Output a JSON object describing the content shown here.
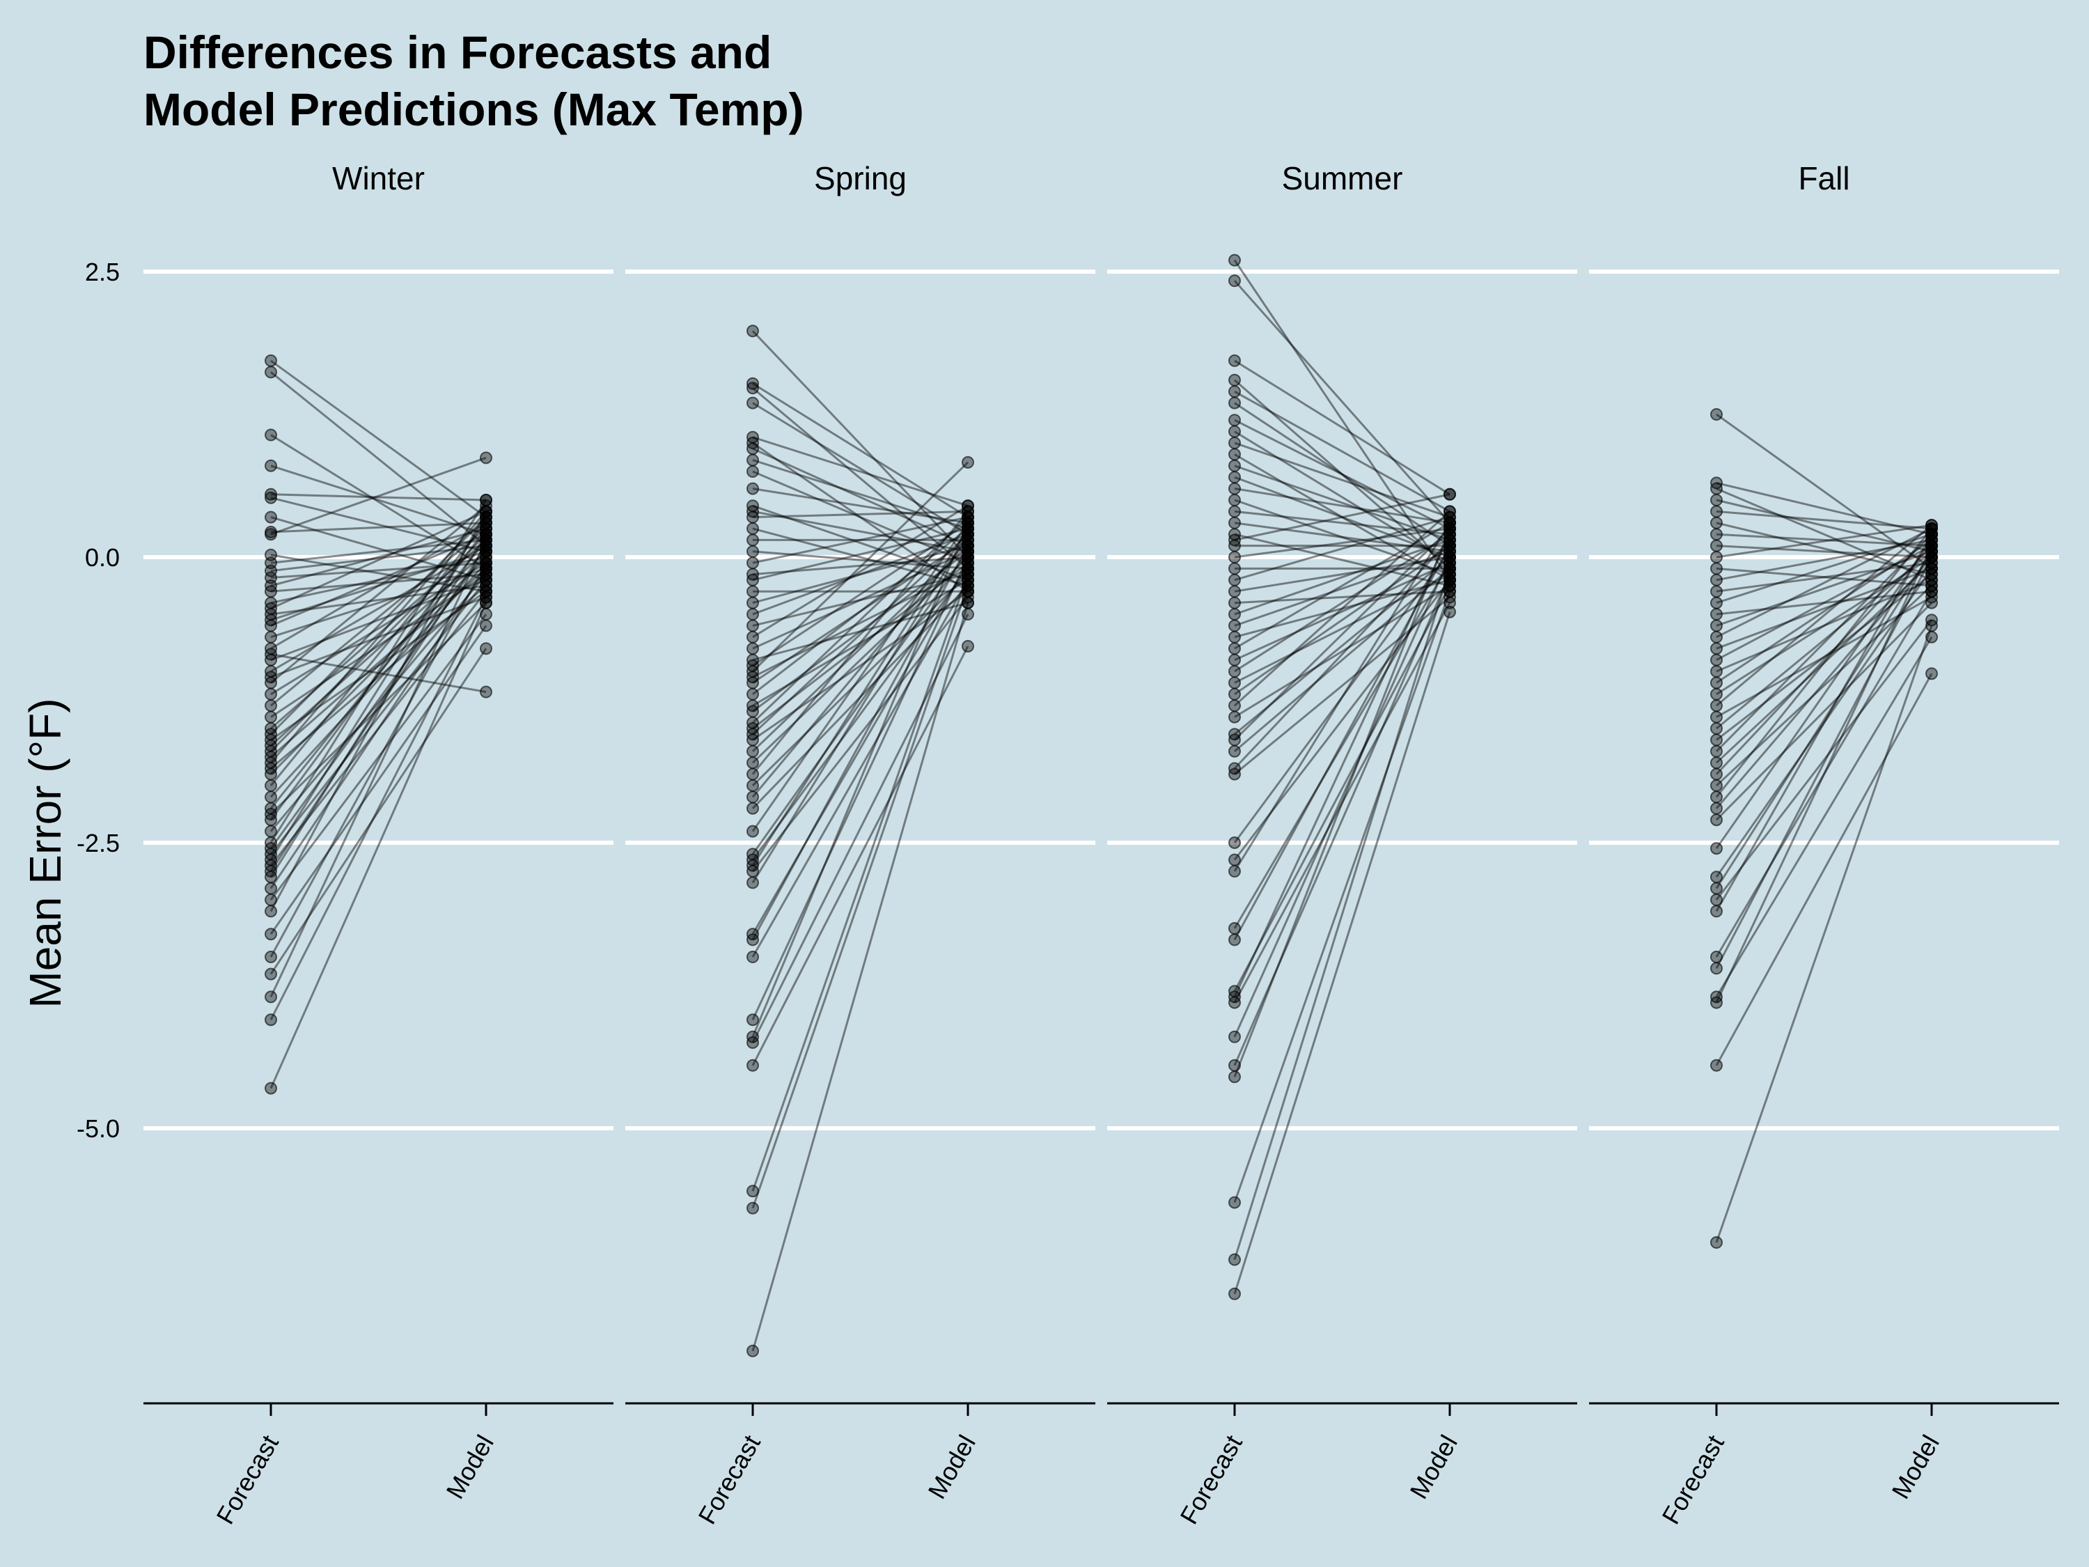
{
  "chart_data": {
    "type": "line",
    "title_lines": [
      "Differences in Forecasts and",
      "Model Predictions (Max Temp)"
    ],
    "xlabel": "",
    "ylabel": "Mean Error (°F)",
    "ylim": [
      -7.4,
      2.6
    ],
    "yticks": [
      2.5,
      0.0,
      -2.5,
      -5.0
    ],
    "ytick_labels": [
      "2.5",
      "0.0",
      "-2.5",
      "-5.0"
    ],
    "categories": [
      "Forecast",
      "Model"
    ],
    "grid": true,
    "colors": {
      "background": "#cde0e7",
      "grid": "#ffffff",
      "line": "#000000",
      "point": "#000000"
    },
    "facets": [
      {
        "name": "Winter",
        "pairs": [
          [
            1.72,
            0.35
          ],
          [
            1.62,
            0.1
          ],
          [
            1.07,
            -0.1
          ],
          [
            0.8,
            0.2
          ],
          [
            0.55,
            0.5
          ],
          [
            0.52,
            0.05
          ],
          [
            0.35,
            -0.2
          ],
          [
            0.22,
            0.3
          ],
          [
            0.2,
            0.87
          ],
          [
            0.02,
            -0.3
          ],
          [
            -0.05,
            0.15
          ],
          [
            -0.12,
            0.1
          ],
          [
            -0.18,
            -0.05
          ],
          [
            -0.25,
            0.25
          ],
          [
            -0.3,
            -0.15
          ],
          [
            -0.4,
            0.0
          ],
          [
            -0.45,
            0.4
          ],
          [
            -0.5,
            -0.25
          ],
          [
            -0.55,
            0.05
          ],
          [
            -0.6,
            0.2
          ],
          [
            -0.7,
            -0.1
          ],
          [
            -0.8,
            0.3
          ],
          [
            -0.85,
            -1.18
          ],
          [
            -0.9,
            -0.2
          ],
          [
            -1.0,
            0.1
          ],
          [
            -1.05,
            -0.35
          ],
          [
            -1.1,
            0.45
          ],
          [
            -1.2,
            -0.05
          ],
          [
            -1.3,
            0.25
          ],
          [
            -1.4,
            -0.15
          ],
          [
            -1.5,
            0.15
          ],
          [
            -1.55,
            0.35
          ],
          [
            -1.6,
            -0.3
          ],
          [
            -1.65,
            0.05
          ],
          [
            -1.7,
            0.2
          ],
          [
            -1.75,
            -0.1
          ],
          [
            -1.8,
            0.4
          ],
          [
            -1.85,
            -0.25
          ],
          [
            -1.9,
            0.0
          ],
          [
            -2.0,
            0.3
          ],
          [
            -2.1,
            -0.05
          ],
          [
            -2.2,
            0.15
          ],
          [
            -2.25,
            -0.4
          ],
          [
            -2.3,
            0.25
          ],
          [
            -2.4,
            -0.15
          ],
          [
            -2.5,
            0.5
          ],
          [
            -2.55,
            0.05
          ],
          [
            -2.6,
            -0.2
          ],
          [
            -2.65,
            0.35
          ],
          [
            -2.7,
            -0.3
          ],
          [
            -2.75,
            0.1
          ],
          [
            -2.8,
            0.2
          ],
          [
            -2.9,
            -0.1
          ],
          [
            -3.0,
            -0.5
          ],
          [
            -3.1,
            0.4
          ],
          [
            -3.3,
            -0.6
          ],
          [
            -3.5,
            -0.05
          ],
          [
            -3.65,
            -0.8
          ],
          [
            -3.85,
            0.15
          ],
          [
            -4.05,
            -0.35
          ],
          [
            -4.65,
            -0.4
          ]
        ]
      },
      {
        "name": "Spring",
        "pairs": [
          [
            1.98,
            0.0
          ],
          [
            1.52,
            0.35
          ],
          [
            1.48,
            -0.1
          ],
          [
            1.35,
            0.2
          ],
          [
            1.05,
            0.45
          ],
          [
            1.0,
            -0.3
          ],
          [
            0.95,
            0.1
          ],
          [
            0.85,
            0.25
          ],
          [
            0.75,
            -0.05
          ],
          [
            0.6,
            0.3
          ],
          [
            0.45,
            -0.2
          ],
          [
            0.4,
            0.05
          ],
          [
            0.35,
            0.4
          ],
          [
            0.25,
            -0.25
          ],
          [
            0.15,
            0.15
          ],
          [
            0.05,
            -0.1
          ],
          [
            -0.05,
            0.35
          ],
          [
            -0.15,
            0.0
          ],
          [
            -0.2,
            0.25
          ],
          [
            -0.3,
            -0.3
          ],
          [
            -0.4,
            0.1
          ],
          [
            -0.5,
            0.2
          ],
          [
            -0.6,
            -0.15
          ],
          [
            -0.7,
            0.45
          ],
          [
            -0.8,
            0.05
          ],
          [
            -0.9,
            -0.4
          ],
          [
            -0.95,
            0.3
          ],
          [
            -1.0,
            0.83
          ],
          [
            -1.05,
            -0.1
          ],
          [
            -1.1,
            0.15
          ],
          [
            -1.2,
            0.25
          ],
          [
            -1.3,
            -0.2
          ],
          [
            -1.35,
            0.05
          ],
          [
            -1.45,
            0.35
          ],
          [
            -1.5,
            -0.05
          ],
          [
            -1.55,
            0.2
          ],
          [
            -1.6,
            -0.3
          ],
          [
            -1.7,
            0.1
          ],
          [
            -1.8,
            0.0
          ],
          [
            -1.9,
            0.4
          ],
          [
            -2.0,
            -0.15
          ],
          [
            -2.1,
            0.15
          ],
          [
            -2.2,
            -0.25
          ],
          [
            -2.4,
            0.3
          ],
          [
            -2.6,
            0.05
          ],
          [
            -2.65,
            -0.1
          ],
          [
            -2.7,
            0.25
          ],
          [
            -2.75,
            -0.35
          ],
          [
            -2.85,
            0.2
          ],
          [
            -3.3,
            -0.05
          ],
          [
            -3.35,
            0.1
          ],
          [
            -3.5,
            -0.2
          ],
          [
            -4.05,
            0.0
          ],
          [
            -4.2,
            0.3
          ],
          [
            -4.25,
            -0.5
          ],
          [
            -4.45,
            -0.78
          ],
          [
            -5.55,
            -0.15
          ],
          [
            -5.7,
            -0.25
          ],
          [
            -6.95,
            -0.4
          ]
        ]
      },
      {
        "name": "Summer",
        "pairs": [
          [
            2.6,
            -0.2
          ],
          [
            2.42,
            0.3
          ],
          [
            1.72,
            0.55
          ],
          [
            1.55,
            -0.1
          ],
          [
            1.45,
            0.4
          ],
          [
            1.35,
            0.1
          ],
          [
            1.2,
            0.25
          ],
          [
            1.1,
            -0.05
          ],
          [
            1.0,
            0.35
          ],
          [
            0.9,
            -0.2
          ],
          [
            0.8,
            0.15
          ],
          [
            0.7,
            0.0
          ],
          [
            0.6,
            0.3
          ],
          [
            0.5,
            -0.15
          ],
          [
            0.4,
            0.2
          ],
          [
            0.3,
            0.05
          ],
          [
            0.2,
            -0.25
          ],
          [
            0.15,
            0.55
          ],
          [
            0.1,
            0.1
          ],
          [
            0.0,
            0.25
          ],
          [
            -0.1,
            -0.1
          ],
          [
            -0.2,
            0.35
          ],
          [
            -0.3,
            0.0
          ],
          [
            -0.4,
            -0.3
          ],
          [
            -0.5,
            0.15
          ],
          [
            -0.6,
            0.05
          ],
          [
            -0.7,
            -0.2
          ],
          [
            -0.8,
            0.3
          ],
          [
            -0.9,
            -0.05
          ],
          [
            -1.0,
            0.2
          ],
          [
            -1.1,
            -0.15
          ],
          [
            -1.2,
            0.1
          ],
          [
            -1.3,
            0.4
          ],
          [
            -1.4,
            -0.25
          ],
          [
            -1.55,
            0.0
          ],
          [
            -1.6,
            0.25
          ],
          [
            -1.7,
            -0.1
          ],
          [
            -1.85,
            0.15
          ],
          [
            -1.9,
            -0.35
          ],
          [
            -2.5,
            0.05
          ],
          [
            -2.65,
            -0.2
          ],
          [
            -2.75,
            0.3
          ],
          [
            -3.25,
            -0.05
          ],
          [
            -3.35,
            0.1
          ],
          [
            -3.8,
            -0.25
          ],
          [
            -3.85,
            0.2
          ],
          [
            -3.9,
            -0.4
          ],
          [
            -4.2,
            0.0
          ],
          [
            -4.45,
            -0.15
          ],
          [
            -4.55,
            0.25
          ],
          [
            -5.65,
            -0.3
          ],
          [
            -6.15,
            -0.1
          ],
          [
            -6.45,
            -0.48
          ]
        ]
      },
      {
        "name": "Fall",
        "pairs": [
          [
            1.25,
            -0.1
          ],
          [
            0.65,
            0.2
          ],
          [
            0.6,
            -0.2
          ],
          [
            0.5,
            0.05
          ],
          [
            0.4,
            0.25
          ],
          [
            0.3,
            -0.15
          ],
          [
            0.2,
            0.1
          ],
          [
            0.1,
            0.0
          ],
          [
            0.0,
            0.28
          ],
          [
            -0.1,
            -0.25
          ],
          [
            -0.2,
            0.15
          ],
          [
            -0.3,
            -0.05
          ],
          [
            -0.4,
            0.2
          ],
          [
            -0.5,
            -0.3
          ],
          [
            -0.6,
            0.05
          ],
          [
            -0.7,
            0.25
          ],
          [
            -0.8,
            -0.1
          ],
          [
            -0.9,
            0.1
          ],
          [
            -1.0,
            -0.2
          ],
          [
            -1.1,
            0.15
          ],
          [
            -1.2,
            0.0
          ],
          [
            -1.3,
            0.28
          ],
          [
            -1.4,
            -0.35
          ],
          [
            -1.5,
            0.05
          ],
          [
            -1.6,
            -0.15
          ],
          [
            -1.7,
            0.2
          ],
          [
            -1.8,
            -0.05
          ],
          [
            -1.9,
            0.1
          ],
          [
            -2.0,
            -0.25
          ],
          [
            -2.1,
            0.25
          ],
          [
            -2.2,
            0.0
          ],
          [
            -2.3,
            -0.4
          ],
          [
            -2.55,
            0.15
          ],
          [
            -2.8,
            -0.1
          ],
          [
            -2.9,
            0.05
          ],
          [
            -3.0,
            -0.55
          ],
          [
            -3.1,
            0.2
          ],
          [
            -3.5,
            -0.3
          ],
          [
            -3.6,
            0.0
          ],
          [
            -3.85,
            -0.7
          ],
          [
            -3.9,
            0.1
          ],
          [
            -4.45,
            -1.02
          ],
          [
            -6.0,
            -0.6
          ]
        ]
      }
    ]
  }
}
